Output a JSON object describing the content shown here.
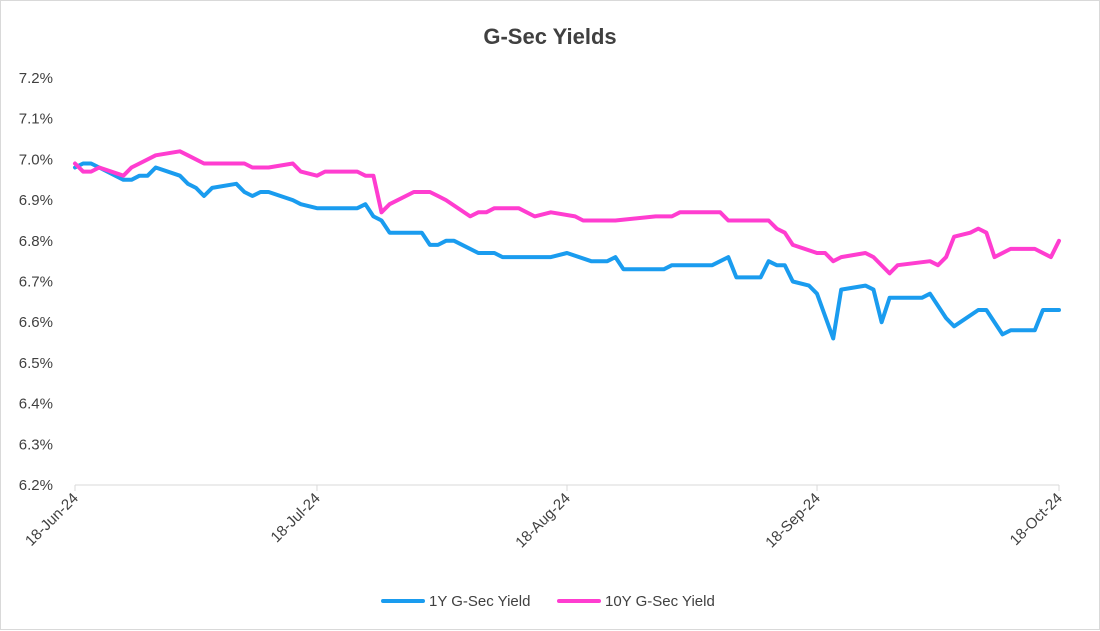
{
  "chart_data": {
    "type": "line",
    "title": "G-Sec Yields",
    "xlabel": "",
    "ylabel": "",
    "ylim": [
      6.2,
      7.2
    ],
    "y_ticks": [
      "6.2%",
      "6.3%",
      "6.4%",
      "6.5%",
      "6.6%",
      "6.7%",
      "6.8%",
      "6.9%",
      "7.0%",
      "7.1%",
      "7.2%"
    ],
    "x_range": [
      "2024-06-18",
      "2024-10-18"
    ],
    "x_ticks": [
      {
        "date": "2024-06-18",
        "label": "18-Jun-24"
      },
      {
        "date": "2024-07-18",
        "label": "18-Jul-24"
      },
      {
        "date": "2024-08-18",
        "label": "18-Aug-24"
      },
      {
        "date": "2024-09-18",
        "label": "18-Sep-24"
      },
      {
        "date": "2024-10-18",
        "label": "18-Oct-24"
      }
    ],
    "grid": false,
    "legend_position": "bottom",
    "series": [
      {
        "name": "1Y G-Sec Yield",
        "color": "#1a9cef",
        "points": [
          [
            "2024-06-18",
            6.98
          ],
          [
            "2024-06-19",
            6.99
          ],
          [
            "2024-06-20",
            6.99
          ],
          [
            "2024-06-21",
            6.98
          ],
          [
            "2024-06-24",
            6.95
          ],
          [
            "2024-06-25",
            6.95
          ],
          [
            "2024-06-26",
            6.96
          ],
          [
            "2024-06-27",
            6.96
          ],
          [
            "2024-06-28",
            6.98
          ],
          [
            "2024-07-01",
            6.96
          ],
          [
            "2024-07-02",
            6.94
          ],
          [
            "2024-07-03",
            6.93
          ],
          [
            "2024-07-04",
            6.91
          ],
          [
            "2024-07-05",
            6.93
          ],
          [
            "2024-07-08",
            6.94
          ],
          [
            "2024-07-09",
            6.92
          ],
          [
            "2024-07-10",
            6.91
          ],
          [
            "2024-07-11",
            6.92
          ],
          [
            "2024-07-12",
            6.92
          ],
          [
            "2024-07-15",
            6.9
          ],
          [
            "2024-07-16",
            6.89
          ],
          [
            "2024-07-18",
            6.88
          ],
          [
            "2024-07-22",
            6.88
          ],
          [
            "2024-07-23",
            6.88
          ],
          [
            "2024-07-24",
            6.89
          ],
          [
            "2024-07-25",
            6.86
          ],
          [
            "2024-07-26",
            6.85
          ],
          [
            "2024-07-27",
            6.82
          ],
          [
            "2024-07-30",
            6.82
          ],
          [
            "2024-07-31",
            6.82
          ],
          [
            "2024-08-01",
            6.79
          ],
          [
            "2024-08-02",
            6.79
          ],
          [
            "2024-08-03",
            6.8
          ],
          [
            "2024-08-04",
            6.8
          ],
          [
            "2024-08-07",
            6.77
          ],
          [
            "2024-08-08",
            6.77
          ],
          [
            "2024-08-09",
            6.77
          ],
          [
            "2024-08-10",
            6.76
          ],
          [
            "2024-08-16",
            6.76
          ],
          [
            "2024-08-18",
            6.77
          ],
          [
            "2024-08-21",
            6.75
          ],
          [
            "2024-08-22",
            6.75
          ],
          [
            "2024-08-23",
            6.75
          ],
          [
            "2024-08-24",
            6.76
          ],
          [
            "2024-08-25",
            6.73
          ],
          [
            "2024-08-30",
            6.73
          ],
          [
            "2024-08-31",
            6.74
          ],
          [
            "2024-09-05",
            6.74
          ],
          [
            "2024-09-06",
            6.75
          ],
          [
            "2024-09-07",
            6.76
          ],
          [
            "2024-09-08",
            6.71
          ],
          [
            "2024-09-11",
            6.71
          ],
          [
            "2024-09-12",
            6.75
          ],
          [
            "2024-09-13",
            6.74
          ],
          [
            "2024-09-14",
            6.74
          ],
          [
            "2024-09-15",
            6.7
          ],
          [
            "2024-09-17",
            6.69
          ],
          [
            "2024-09-18",
            6.67
          ],
          [
            "2024-09-20",
            6.56
          ],
          [
            "2024-09-21",
            6.68
          ],
          [
            "2024-09-24",
            6.69
          ],
          [
            "2024-09-25",
            6.68
          ],
          [
            "2024-09-26",
            6.6
          ],
          [
            "2024-09-27",
            6.66
          ],
          [
            "2024-10-01",
            6.66
          ],
          [
            "2024-10-02",
            6.67
          ],
          [
            "2024-10-04",
            6.61
          ],
          [
            "2024-10-05",
            6.59
          ],
          [
            "2024-10-08",
            6.63
          ],
          [
            "2024-10-09",
            6.63
          ],
          [
            "2024-10-11",
            6.57
          ],
          [
            "2024-10-12",
            6.58
          ],
          [
            "2024-10-15",
            6.58
          ],
          [
            "2024-10-16",
            6.63
          ],
          [
            "2024-10-18",
            6.63
          ]
        ]
      },
      {
        "name": "10Y G-Sec Yield",
        "color": "#ff3dd0",
        "points": [
          [
            "2024-06-18",
            6.99
          ],
          [
            "2024-06-19",
            6.97
          ],
          [
            "2024-06-20",
            6.97
          ],
          [
            "2024-06-21",
            6.98
          ],
          [
            "2024-06-24",
            6.96
          ],
          [
            "2024-06-25",
            6.98
          ],
          [
            "2024-06-26",
            6.99
          ],
          [
            "2024-06-28",
            7.01
          ],
          [
            "2024-07-01",
            7.02
          ],
          [
            "2024-07-02",
            7.01
          ],
          [
            "2024-07-04",
            6.99
          ],
          [
            "2024-07-09",
            6.99
          ],
          [
            "2024-07-10",
            6.98
          ],
          [
            "2024-07-12",
            6.98
          ],
          [
            "2024-07-15",
            6.99
          ],
          [
            "2024-07-16",
            6.97
          ],
          [
            "2024-07-18",
            6.96
          ],
          [
            "2024-07-19",
            6.97
          ],
          [
            "2024-07-23",
            6.97
          ],
          [
            "2024-07-24",
            6.96
          ],
          [
            "2024-07-25",
            6.96
          ],
          [
            "2024-07-26",
            6.87
          ],
          [
            "2024-07-27",
            6.89
          ],
          [
            "2024-07-30",
            6.92
          ],
          [
            "2024-08-01",
            6.92
          ],
          [
            "2024-08-02",
            6.91
          ],
          [
            "2024-08-03",
            6.9
          ],
          [
            "2024-08-06",
            6.86
          ],
          [
            "2024-08-07",
            6.87
          ],
          [
            "2024-08-08",
            6.87
          ],
          [
            "2024-08-09",
            6.88
          ],
          [
            "2024-08-12",
            6.88
          ],
          [
            "2024-08-14",
            6.86
          ],
          [
            "2024-08-16",
            6.87
          ],
          [
            "2024-08-19",
            6.86
          ],
          [
            "2024-08-20",
            6.85
          ],
          [
            "2024-08-24",
            6.85
          ],
          [
            "2024-08-29",
            6.86
          ],
          [
            "2024-08-31",
            6.86
          ],
          [
            "2024-09-01",
            6.87
          ],
          [
            "2024-09-06",
            6.87
          ],
          [
            "2024-09-07",
            6.85
          ],
          [
            "2024-09-12",
            6.85
          ],
          [
            "2024-09-13",
            6.83
          ],
          [
            "2024-09-14",
            6.82
          ],
          [
            "2024-09-15",
            6.79
          ],
          [
            "2024-09-18",
            6.77
          ],
          [
            "2024-09-19",
            6.77
          ],
          [
            "2024-09-20",
            6.75
          ],
          [
            "2024-09-21",
            6.76
          ],
          [
            "2024-09-24",
            6.77
          ],
          [
            "2024-09-25",
            6.76
          ],
          [
            "2024-09-27",
            6.72
          ],
          [
            "2024-09-28",
            6.74
          ],
          [
            "2024-10-02",
            6.75
          ],
          [
            "2024-10-03",
            6.74
          ],
          [
            "2024-10-04",
            6.76
          ],
          [
            "2024-10-05",
            6.81
          ],
          [
            "2024-10-07",
            6.82
          ],
          [
            "2024-10-08",
            6.83
          ],
          [
            "2024-10-09",
            6.82
          ],
          [
            "2024-10-10",
            6.76
          ],
          [
            "2024-10-12",
            6.78
          ],
          [
            "2024-10-15",
            6.78
          ],
          [
            "2024-10-17",
            6.76
          ],
          [
            "2024-10-18",
            6.8
          ]
        ]
      }
    ]
  }
}
